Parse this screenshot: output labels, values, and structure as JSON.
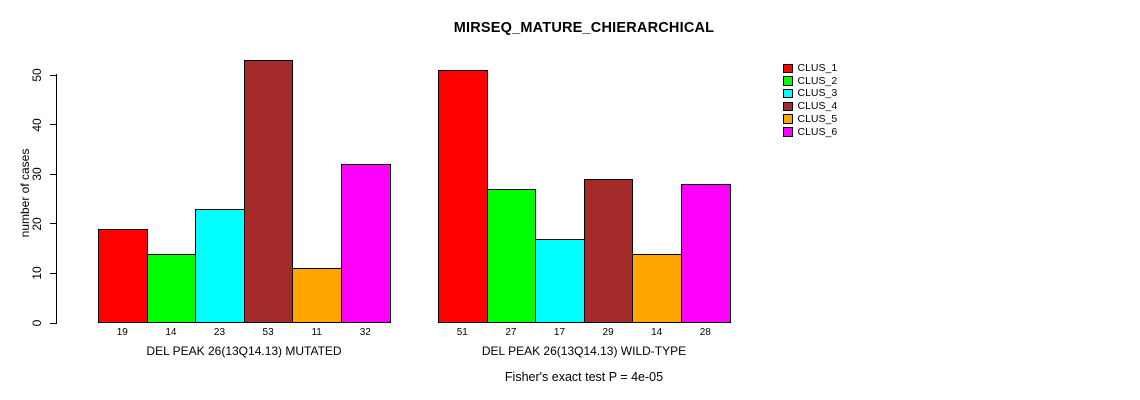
{
  "chart_data": {
    "type": "bar",
    "title": "MIRSEQ_MATURE_CHIERARCHICAL",
    "ylabel": "number of cases",
    "xlabel": "",
    "ylim": [
      0,
      53
    ],
    "yticks": [
      0,
      10,
      20,
      30,
      40,
      50
    ],
    "grid": false,
    "legend_position": "right",
    "categories": [
      "DEL PEAK 26(13Q14.13) MUTATED",
      "DEL PEAK 26(13Q14.13) WILD-TYPE"
    ],
    "series": [
      {
        "name": "CLUS_1",
        "color": "#FF0000",
        "values": [
          19,
          51
        ]
      },
      {
        "name": "CLUS_2",
        "color": "#00FF00",
        "values": [
          14,
          27
        ]
      },
      {
        "name": "CLUS_3",
        "color": "#00FFFF",
        "values": [
          23,
          17
        ]
      },
      {
        "name": "CLUS_4",
        "color": "#A52A2A",
        "values": [
          53,
          29
        ]
      },
      {
        "name": "CLUS_5",
        "color": "#FFA500",
        "values": [
          11,
          14
        ]
      },
      {
        "name": "CLUS_6",
        "color": "#FF00FF",
        "values": [
          32,
          28
        ]
      }
    ],
    "bar_value_labels_shown": true,
    "annotation": "Fisher's exact test P = 4e-05",
    "colors": {
      "background": "#FFFFFF",
      "axis": "#000000",
      "bar_border": "#000000",
      "text": "#000000"
    }
  }
}
